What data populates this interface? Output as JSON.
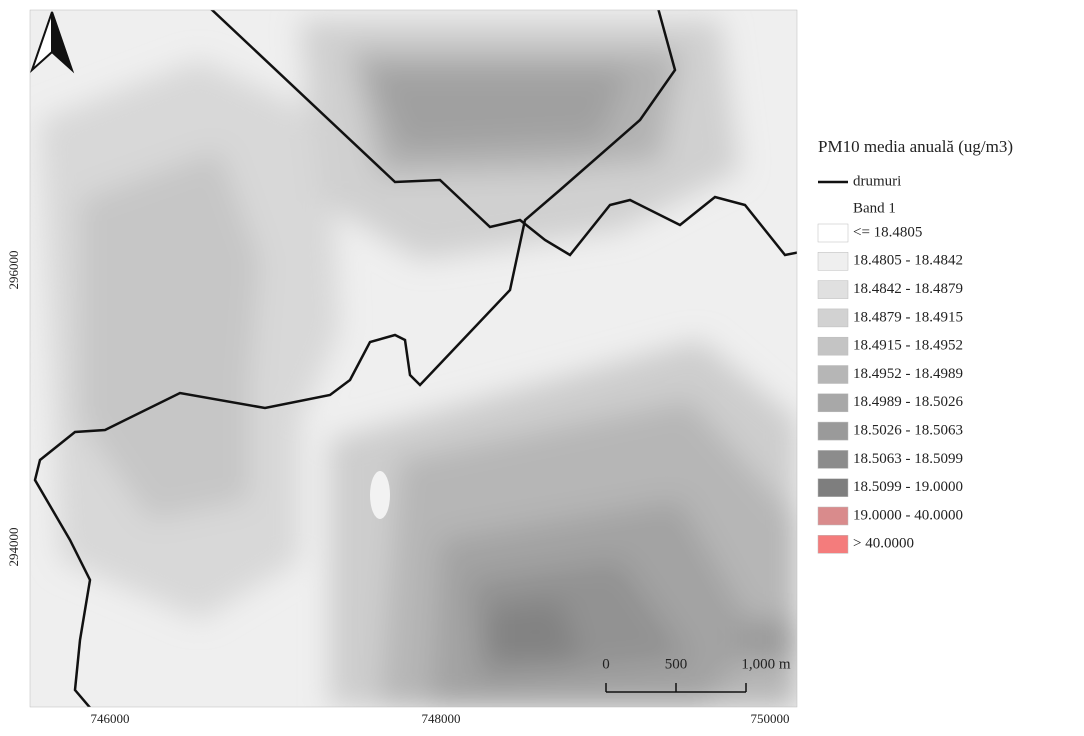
{
  "map": {
    "x_ticks": [
      "746000",
      "748000",
      "750000"
    ],
    "y_ticks": [
      "296000",
      "294000"
    ],
    "scale_bar": [
      "0",
      "500",
      "1,000 m"
    ]
  },
  "legend": {
    "title": "PM10 media anuală (ug/m3)",
    "roads": "drumuri",
    "band": "Band 1",
    "classes": [
      {
        "label": "<= 18.4805",
        "color": "#ffffff"
      },
      {
        "label": "18.4805 - 18.4842",
        "color": "#efefef"
      },
      {
        "label": "18.4842 - 18.4879",
        "color": "#e0e0e0"
      },
      {
        "label": "18.4879 - 18.4915",
        "color": "#d2d2d2"
      },
      {
        "label": "18.4915 - 18.4952",
        "color": "#c4c4c4"
      },
      {
        "label": "18.4952 - 18.4989",
        "color": "#b6b6b6"
      },
      {
        "label": "18.4989 - 18.5026",
        "color": "#a8a8a8"
      },
      {
        "label": "18.5026 - 18.5063",
        "color": "#9a9a9a"
      },
      {
        "label": "18.5063 - 18.5099",
        "color": "#8c8c8c"
      },
      {
        "label": "18.5099 - 19.0000",
        "color": "#7e7e7e"
      },
      {
        "label": "19.0000 - 40.0000",
        "color": "#d98b8c"
      },
      {
        "label": "> 40.0000",
        "color": "#f47c7c"
      }
    ]
  }
}
